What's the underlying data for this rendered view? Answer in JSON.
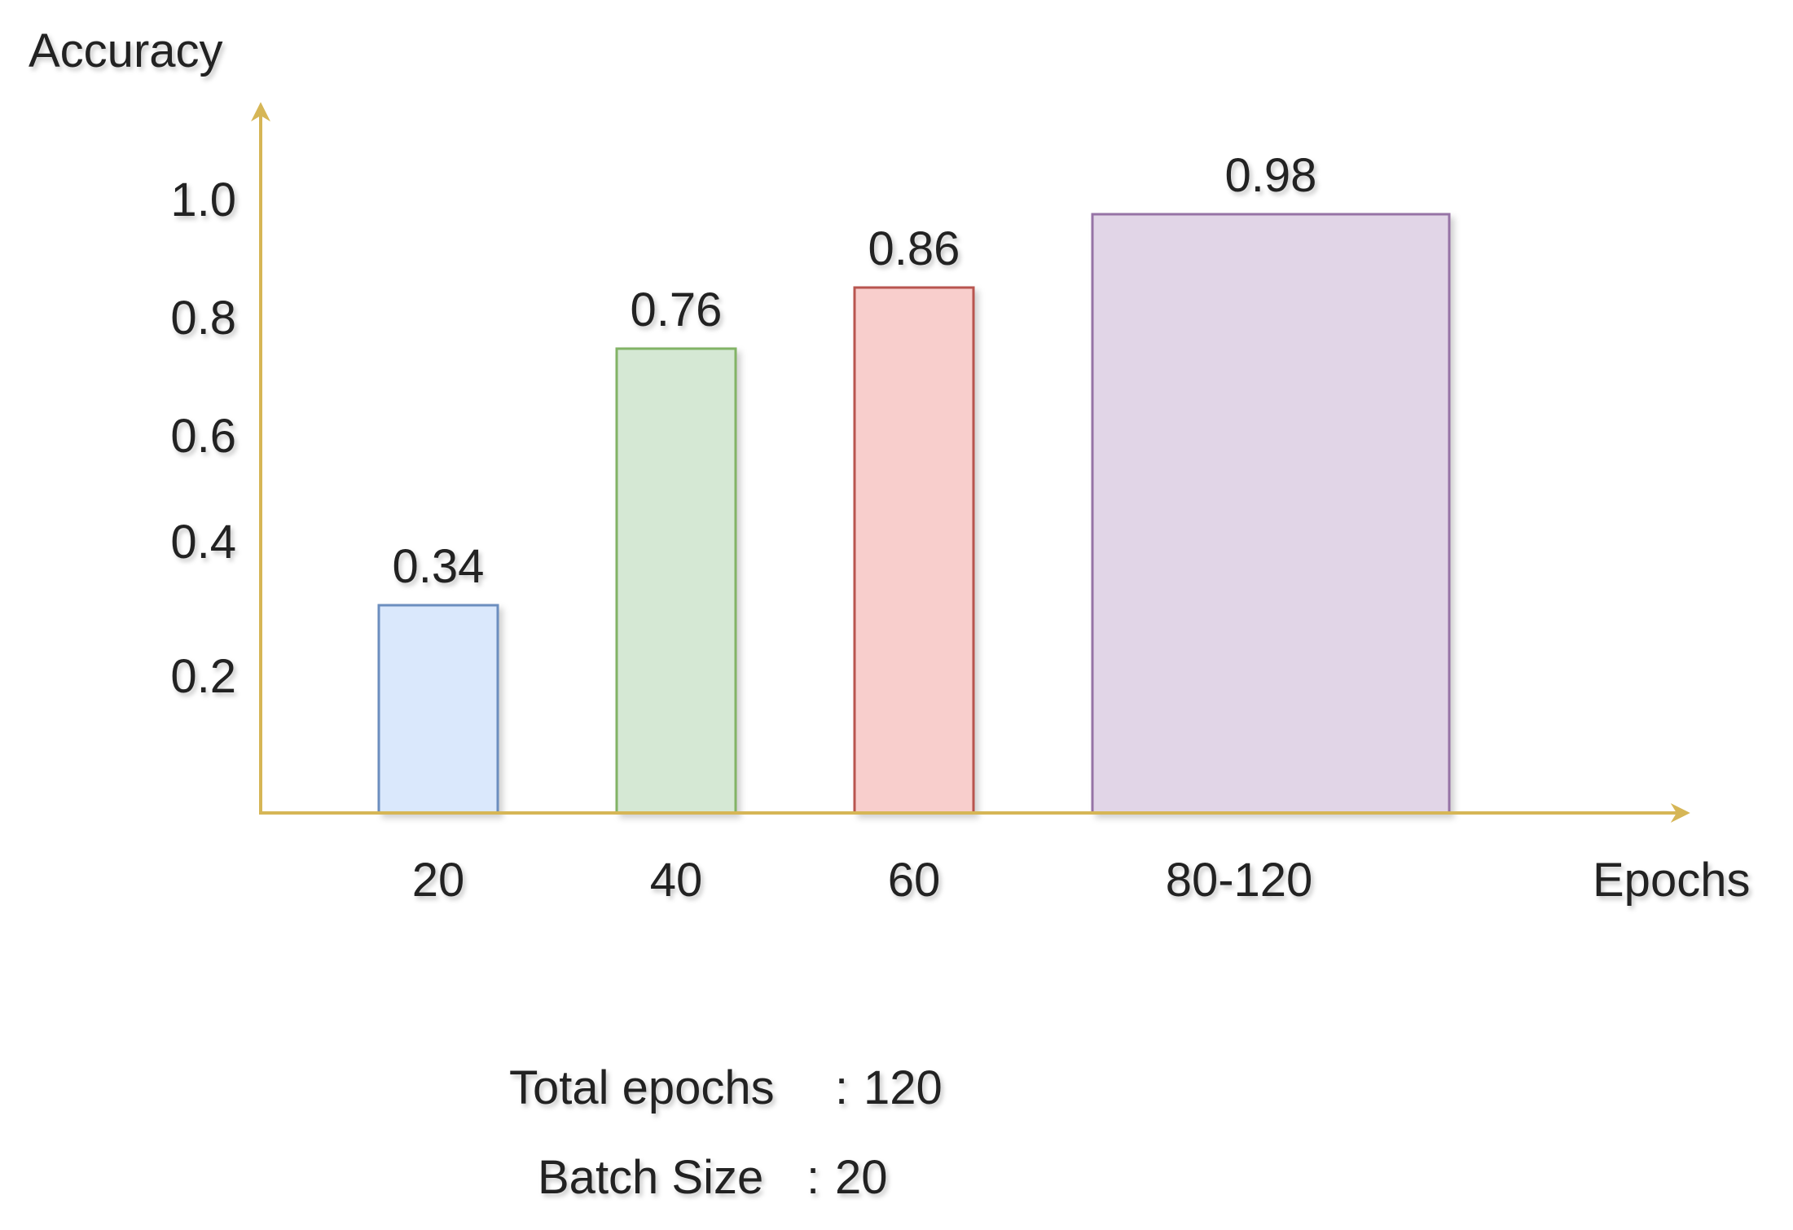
{
  "chart_data": {
    "type": "bar",
    "ylabel": "Accuracy",
    "xlabel": "Epochs",
    "yticks": [
      "1.0",
      "0.8",
      "0.6",
      "0.4",
      "0.2"
    ],
    "categories": [
      "20",
      "40",
      "60",
      "80-120"
    ],
    "values": [
      0.34,
      0.76,
      0.86,
      0.98
    ],
    "value_labels": [
      "0.34",
      "0.76",
      "0.86",
      "0.98"
    ],
    "bar_fill_colors": [
      "#dae8fc",
      "#d5e8d4",
      "#f8cecc",
      "#e1d5e7"
    ],
    "bar_stroke_colors": [
      "#6c8ebf",
      "#82b366",
      "#b85450",
      "#9673a6"
    ],
    "axis_color": "#d6b656",
    "grid": false,
    "legend": "none"
  },
  "notes": {
    "total_epochs_label": "Total epochs",
    "total_epochs_value": "120",
    "batch_size_label": "Batch Size",
    "batch_size_value": "20"
  }
}
